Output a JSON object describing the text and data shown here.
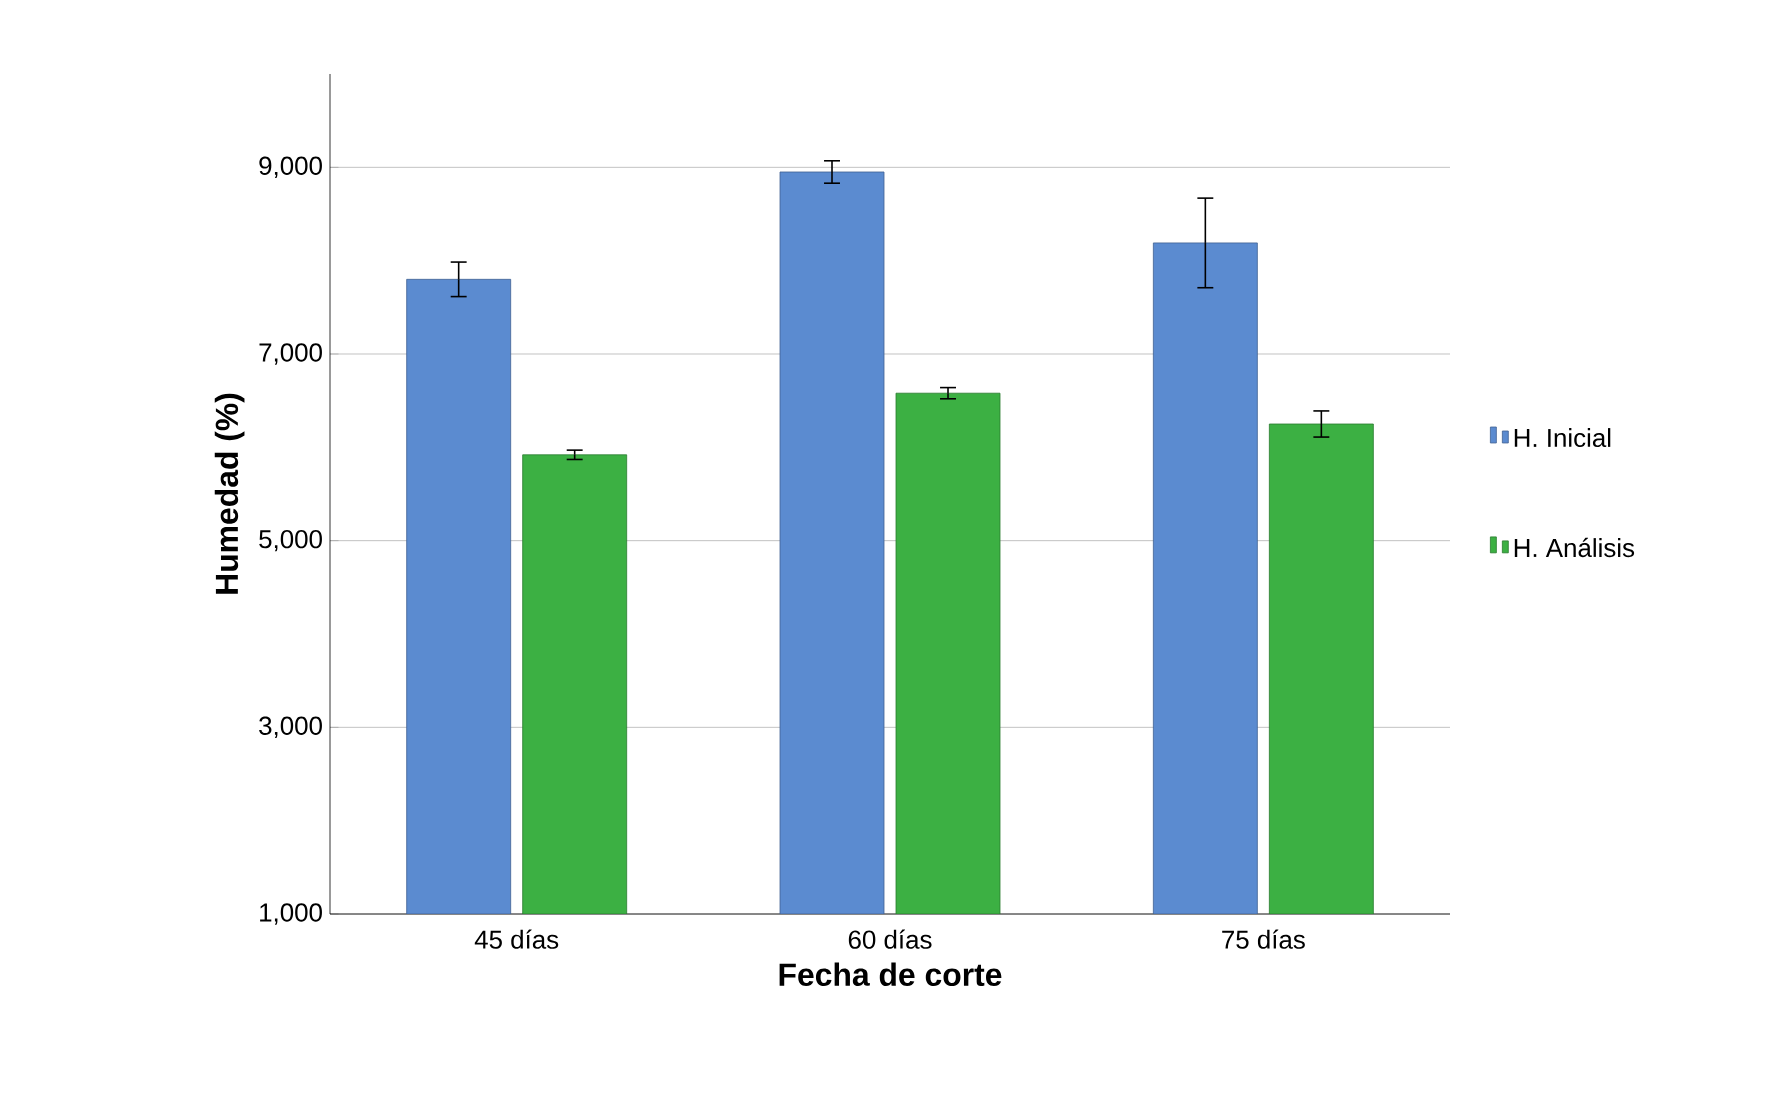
{
  "chart_data": {
    "type": "bar",
    "xlabel": "Fecha de corte",
    "ylabel": "Humedad (%)",
    "categories": [
      "45 días",
      "60 días",
      "75 días"
    ],
    "series": [
      {
        "name": "H. Inicial",
        "color": "#5b8bd0",
        "values": [
          7800,
          8950,
          8190
        ],
        "errors": [
          185,
          120,
          480
        ]
      },
      {
        "name": "H. Análisis",
        "color": "#3cb043",
        "values": [
          5920,
          6580,
          6250
        ],
        "errors": [
          50,
          60,
          140
        ]
      }
    ],
    "ylim": [
      1000,
      10000
    ],
    "yticks": [
      {
        "value": 1000,
        "label": "1,000"
      },
      {
        "value": 3000,
        "label": "3,000"
      },
      {
        "value": 5000,
        "label": "5,000"
      },
      {
        "value": 7000,
        "label": "7,000"
      },
      {
        "value": 9000,
        "label": "9,000"
      }
    ],
    "grid": "y",
    "legend": "right"
  }
}
